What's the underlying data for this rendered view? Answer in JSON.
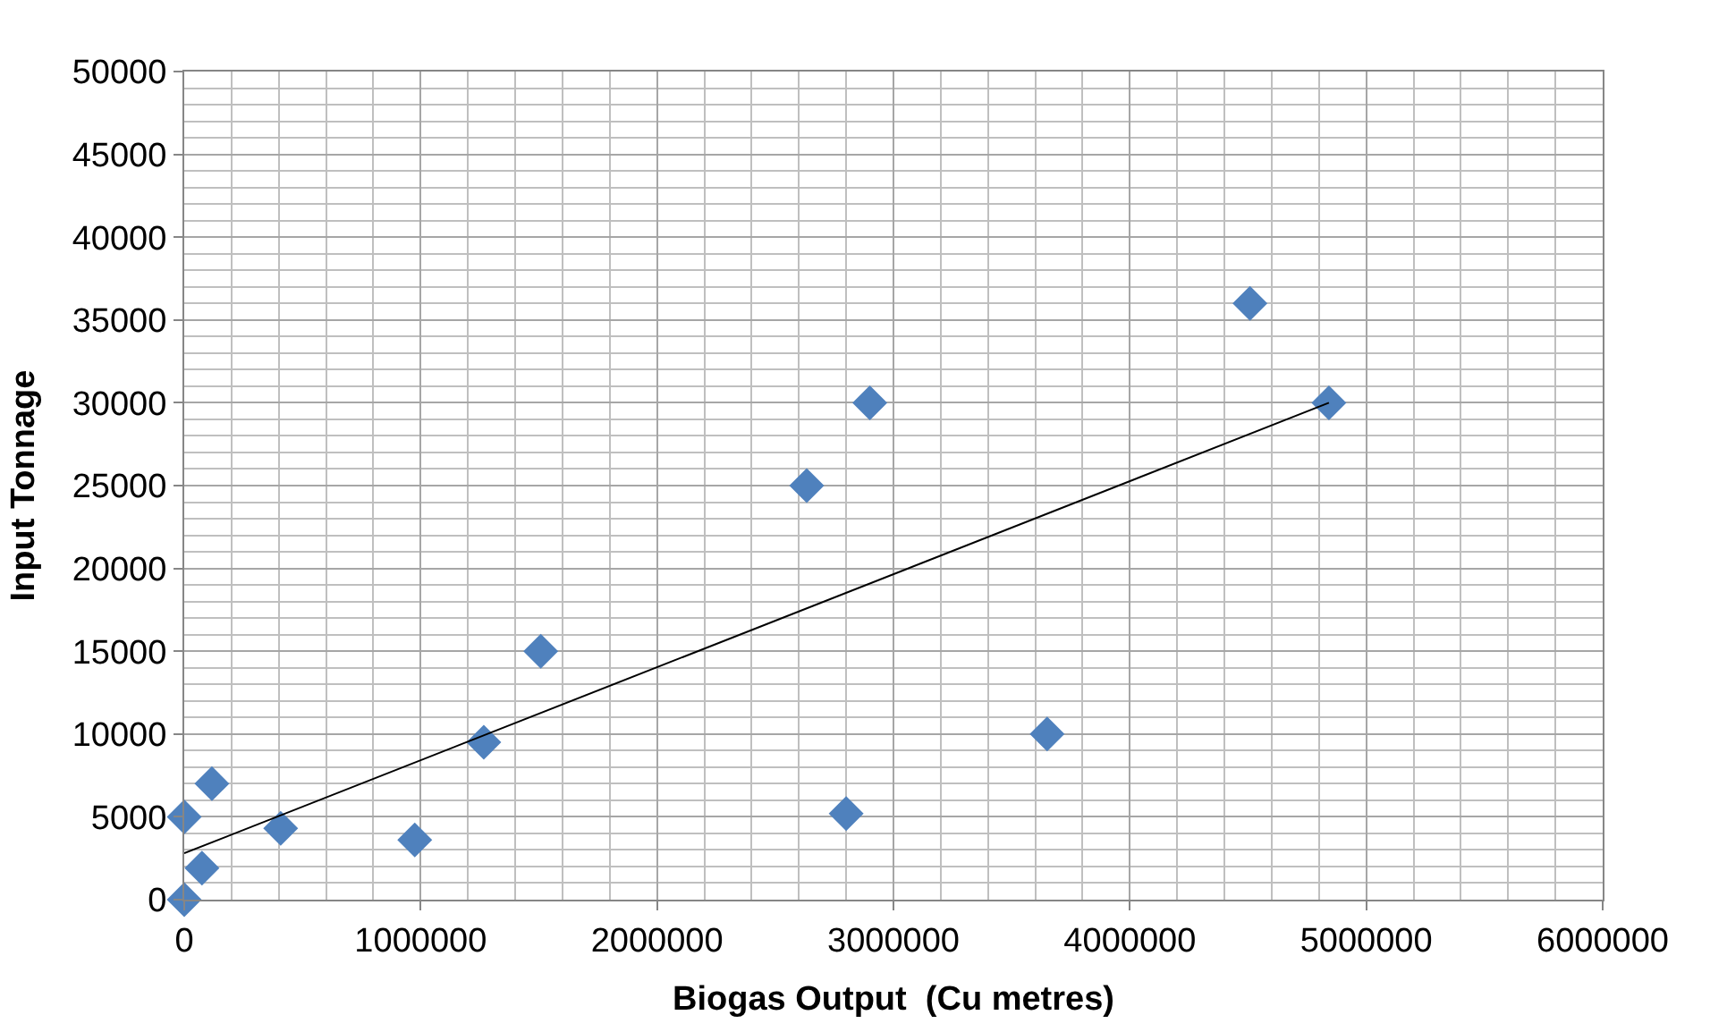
{
  "chart_data": {
    "type": "scatter",
    "xlabel": "Biogas Output  (Cu metres)",
    "ylabel": "Input Tonnage",
    "xlim": [
      0,
      6000000
    ],
    "xticks": [
      0,
      1000000,
      2000000,
      3000000,
      4000000,
      5000000,
      6000000
    ],
    "ylim": [
      0,
      50000
    ],
    "yticks": [
      0,
      5000,
      10000,
      15000,
      20000,
      25000,
      30000,
      35000,
      40000,
      45000,
      50000
    ],
    "grid": true,
    "series": [
      {
        "color": "#4f81bd",
        "marker": "diamond",
        "x": [
          0,
          0,
          75000,
          117000,
          408000,
          975000,
          1267000,
          1508000,
          2633000,
          2800000,
          2900000,
          3650000,
          4508000,
          4842000
        ],
        "values": [
          0,
          5000,
          1900,
          7000,
          4300,
          3600,
          9500,
          15000,
          25000,
          5200,
          30000,
          10000,
          36000,
          30000
        ]
      },
      {
        "type": "line",
        "marker": "none",
        "color": "#000000",
        "x": [
          0,
          4842000
        ],
        "values": [
          2800,
          30000
        ]
      }
    ]
  }
}
